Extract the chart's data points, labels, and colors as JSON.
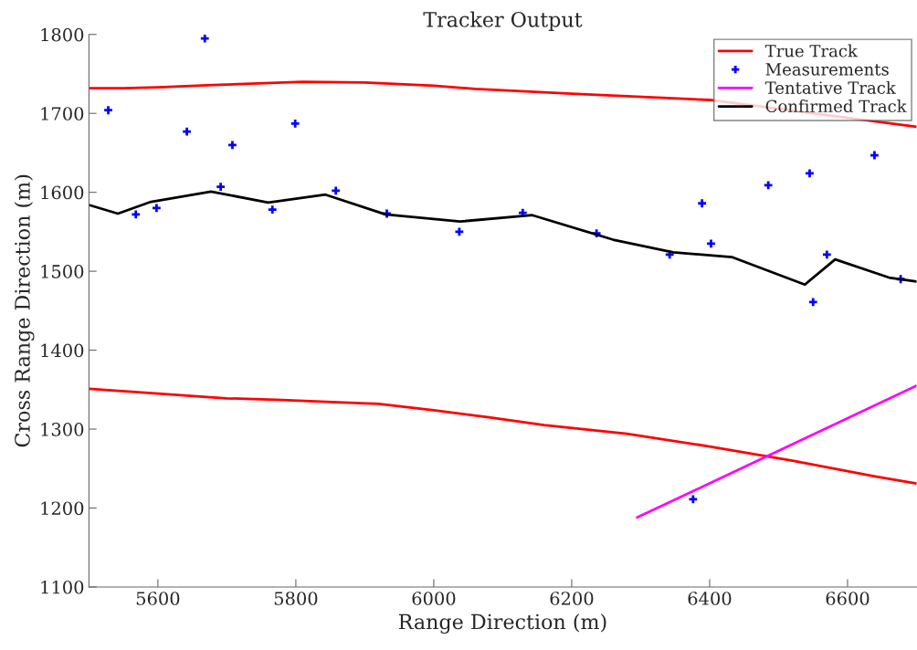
{
  "chart_data": {
    "type": "line",
    "title": "Tracker Output",
    "xlabel": "Range Direction (m)",
    "ylabel": "Cross Range Direction (m)",
    "xlim": [
      5500,
      6700
    ],
    "xticks": [
      5600,
      5800,
      6000,
      6200,
      6400,
      6600
    ],
    "ylim": [
      1100,
      1800
    ],
    "yticks": [
      1100,
      1200,
      1300,
      1400,
      1500,
      1600,
      1700,
      1800
    ],
    "grid": false,
    "legend": "top right",
    "series": [
      {
        "name": "True Track",
        "color": "#ff0000",
        "x": [
          5500,
          5550,
          5600,
          5680,
          5810,
          5900,
          6000,
          6060,
          6200,
          6400,
          6700
        ],
        "values": [
          1732,
          1732,
          1733,
          1736,
          1740,
          1739,
          1735,
          1731,
          1725,
          1717,
          1683
        ]
      },
      {
        "color": "#ff0000",
        "x": [
          5500,
          5600,
          5680,
          5700,
          5780,
          5860,
          5920,
          6000,
          6080,
          6160,
          6280,
          6400,
          6520,
          6640,
          6700
        ],
        "values": [
          1351,
          1345,
          1340,
          1339,
          1337,
          1334,
          1332,
          1324,
          1315,
          1305,
          1294,
          1278,
          1260,
          1240,
          1231
        ]
      },
      {
        "name": "Measurements",
        "type": "scatter",
        "marker": "cross",
        "color": "#0000ff",
        "x": [
          5528,
          5568,
          5598,
          5642,
          5668,
          5691,
          5708,
          5766,
          5799,
          5858,
          5932,
          6037,
          6129,
          6236,
          6342,
          6376,
          6389,
          6402,
          6485,
          6545,
          6550,
          6570,
          6639,
          6677
        ],
        "values": [
          1704,
          1572,
          1580,
          1677,
          1795,
          1607,
          1660,
          1578,
          1687,
          1602,
          1573,
          1550,
          1574,
          1548,
          1521,
          1211,
          1586,
          1535,
          1609,
          1624,
          1461,
          1521,
          1647,
          1490
        ]
      },
      {
        "name": "Tentative Track",
        "color": "#ff00ff",
        "x": [
          6295,
          6700
        ],
        "values": [
          1188,
          1355
        ]
      },
      {
        "name": "Confirmed Track",
        "color": "#000000",
        "x": [
          5500,
          5542,
          5590,
          5677,
          5760,
          5843,
          5930,
          6038,
          6143,
          6260,
          6347,
          6432,
          6538,
          6582,
          6660,
          6700
        ],
        "values": [
          1584,
          1573,
          1588,
          1601,
          1587,
          1597,
          1572,
          1563,
          1571,
          1540,
          1524,
          1518,
          1483,
          1515,
          1492,
          1487
        ]
      }
    ]
  }
}
